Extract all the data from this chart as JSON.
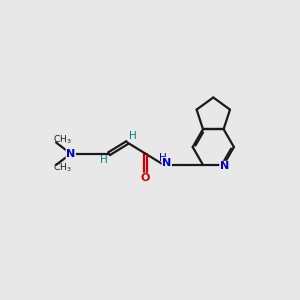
{
  "bg_color": "#e8e8e8",
  "bond_color": "#1a1a1a",
  "N_color": "#0000cc",
  "O_color": "#cc0000",
  "H_color": "#008080",
  "line_width": 1.6,
  "fig_size": [
    3.0,
    3.0
  ],
  "dpi": 100,
  "xlim": [
    0,
    10
  ],
  "ylim": [
    0,
    10
  ]
}
